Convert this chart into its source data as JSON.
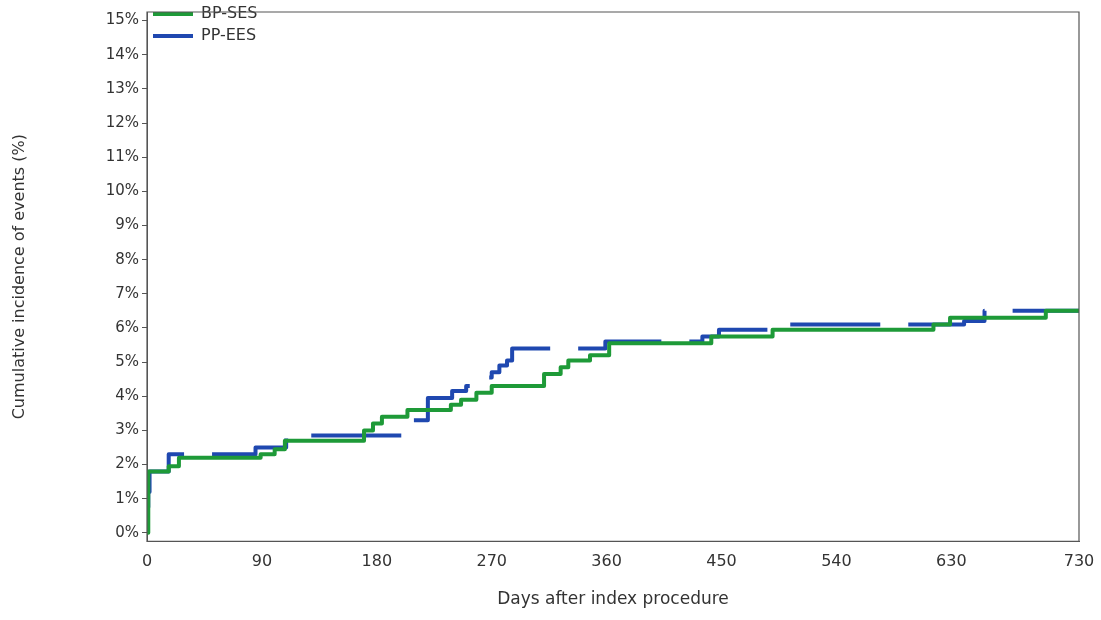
{
  "chart_data": {
    "type": "step",
    "xlabel": "Days after index procedure",
    "ylabel": "Cumulative incidence of events (%)",
    "xlim": [
      0,
      730
    ],
    "xticks": [
      0,
      90,
      180,
      270,
      360,
      450,
      540,
      630,
      730
    ],
    "ylim": [
      -0.25,
      15.25
    ],
    "yticks": [
      {
        "value": 0,
        "label": "0%"
      },
      {
        "value": 1,
        "label": "1%"
      },
      {
        "value": 2,
        "label": "2%"
      },
      {
        "value": 3,
        "label": "3%"
      },
      {
        "value": 4,
        "label": "4%"
      },
      {
        "value": 5,
        "label": "5%"
      },
      {
        "value": 6,
        "label": "6%"
      },
      {
        "value": 7,
        "label": "7%"
      },
      {
        "value": 8,
        "label": "8%"
      },
      {
        "value": 9,
        "label": "9%"
      },
      {
        "value": 10,
        "label": "10%"
      },
      {
        "value": 11,
        "label": "11%"
      },
      {
        "value": 12,
        "label": "12%"
      },
      {
        "value": 13,
        "label": "13%"
      },
      {
        "value": 14,
        "label": "14%"
      },
      {
        "value": 15,
        "label": "15%"
      }
    ],
    "grid": false,
    "legend": "top left",
    "marker": "none",
    "series": [
      {
        "name": "PP-EES",
        "color": "#1f48b0",
        "line_style": "dashed",
        "x": [
          0,
          1,
          2,
          17,
          85,
          109,
          200,
          208,
          220,
          239,
          250,
          264,
          270,
          276,
          282,
          286,
          359,
          435,
          448,
          486,
          640,
          656,
          730
        ],
        "values": [
          0.75,
          1.2,
          1.8,
          2.3,
          2.5,
          2.85,
          3.05,
          3.3,
          3.95,
          4.15,
          4.3,
          4.55,
          4.7,
          4.9,
          5.05,
          5.4,
          5.6,
          5.75,
          5.95,
          6.1,
          6.2,
          6.5,
          6.5
        ]
      },
      {
        "name": "BP-SES",
        "color": "#1e9a38",
        "line_style": "solid",
        "x": [
          0,
          1,
          17,
          25,
          89,
          100,
          108,
          170,
          177,
          184,
          204,
          238,
          246,
          258,
          270,
          311,
          324,
          330,
          347,
          362,
          442,
          490,
          616,
          629,
          704,
          730
        ],
        "values": [
          0,
          1.8,
          1.95,
          2.2,
          2.3,
          2.45,
          2.7,
          3.0,
          3.2,
          3.4,
          3.6,
          3.75,
          3.9,
          4.1,
          4.3,
          4.65,
          4.85,
          5.05,
          5.2,
          5.55,
          5.75,
          5.95,
          6.1,
          6.3,
          6.5,
          6.5
        ]
      }
    ]
  }
}
